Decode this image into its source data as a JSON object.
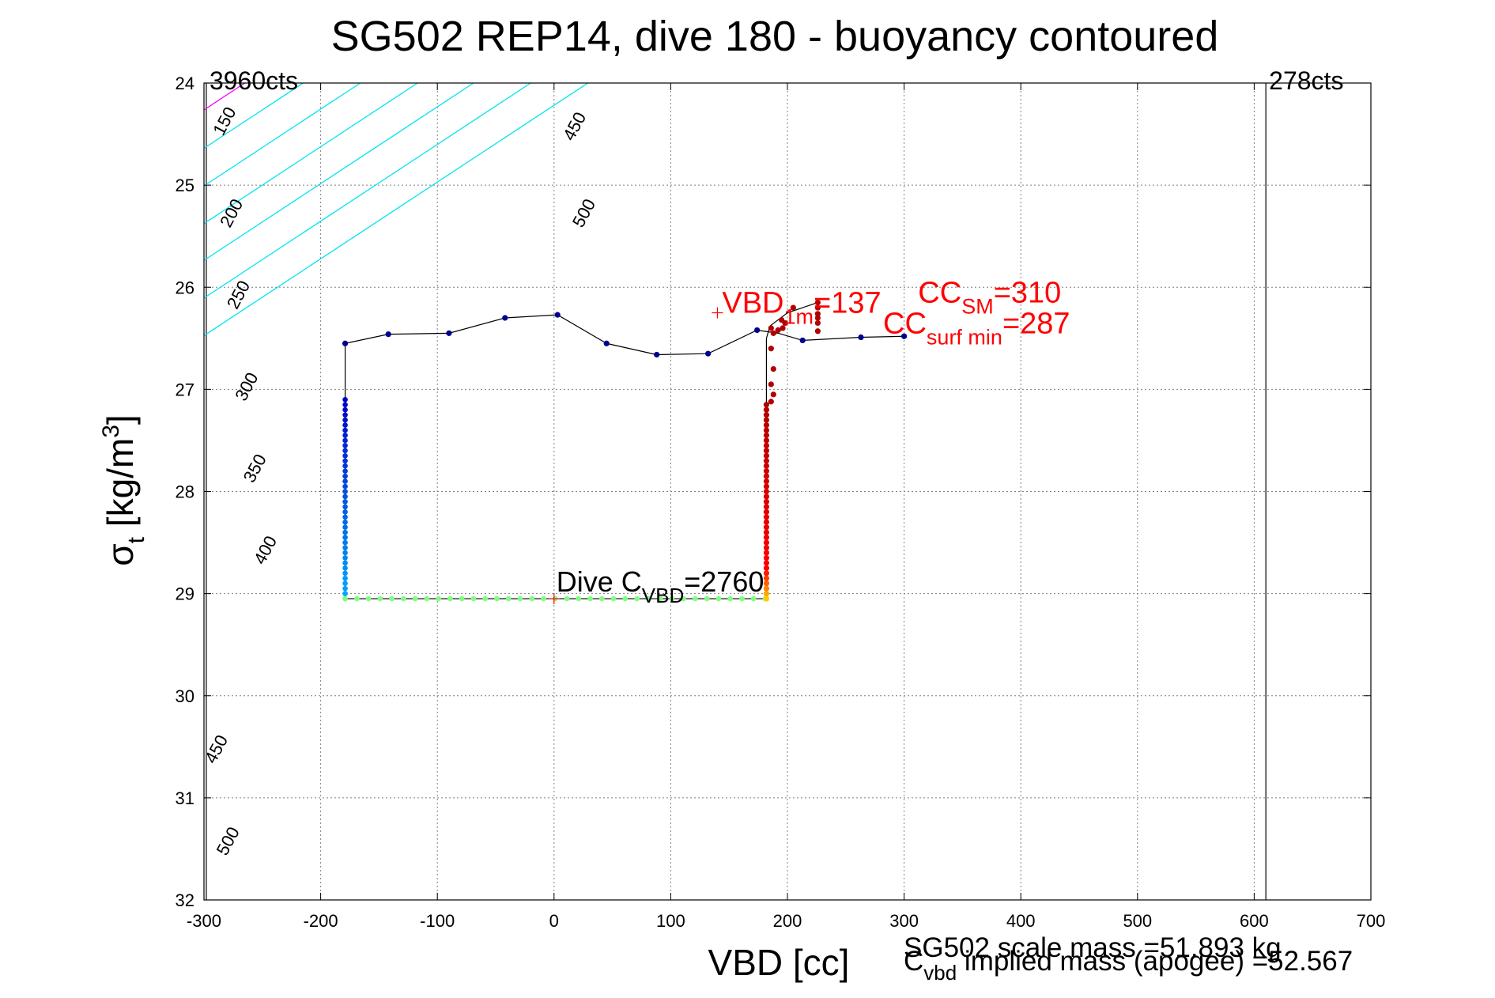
{
  "chart_data": {
    "type": "scatter",
    "title": "SG502 REP14, dive 180 - buoyancy contoured",
    "xlabel": "VBD [cc]",
    "ylabel": {
      "main": "σ",
      "sub": "t",
      "rest": " [kg/m",
      "sup": "3",
      "close": "]"
    },
    "xlim": [
      -300,
      700
    ],
    "ylim": [
      32,
      24
    ],
    "y_reversed": true,
    "grid": true,
    "xticks": [
      -300,
      -200,
      -100,
      0,
      100,
      200,
      300,
      400,
      500,
      600,
      700
    ],
    "yticks": [
      24,
      25,
      26,
      27,
      28,
      29,
      30,
      31,
      32
    ],
    "colors": {
      "axes": "#000000",
      "grid": "#7f7f7f",
      "contour": "#00e5ee",
      "contour_highlight": "#ff00ff",
      "annotation_red": "#ff0000",
      "track": "#000000",
      "surface_points": "#00008f"
    },
    "contours": [
      {
        "label": "150",
        "x_at_y24": -313
      },
      {
        "label": "200",
        "x_at_y24": -265
      },
      {
        "label": "250",
        "x_at_y24": -215
      },
      {
        "label": "300",
        "x_at_y24": -166
      },
      {
        "label": "350",
        "x_at_y24": -117
      },
      {
        "label": "400",
        "x_at_y24": -69
      },
      {
        "label": "450",
        "x_at_y24": -20
      },
      {
        "label": "500",
        "x_at_y24": 29
      }
    ],
    "contour_label_marks": [
      {
        "label": "150",
        "x": -278,
        "y": 24.4
      },
      {
        "label": "200",
        "x": -272,
        "y": 25.3
      },
      {
        "label": "250",
        "x": -266,
        "y": 26.1
      },
      {
        "label": "300",
        "x": -259,
        "y": 27.0
      },
      {
        "label": "350",
        "x": -252,
        "y": 27.8
      },
      {
        "label": "400",
        "x": -243,
        "y": 28.6
      },
      {
        "label": "450",
        "x": 22,
        "y": 24.45
      },
      {
        "label": "500",
        "x": 30,
        "y": 25.3
      },
      {
        "label": "450",
        "x": -285,
        "y": 30.55
      },
      {
        "label": "500",
        "x": -275,
        "y": 31.45
      }
    ],
    "count_lines": [
      {
        "label": "3960cts",
        "x": -298
      },
      {
        "label": "278cts",
        "x": 610
      }
    ],
    "track": [
      [
        300,
        26.48
      ],
      [
        263,
        26.49
      ],
      [
        213,
        26.52
      ],
      [
        192,
        26.45
      ],
      [
        174,
        26.42
      ],
      [
        132,
        26.65
      ],
      [
        88,
        26.66
      ],
      [
        45,
        26.55
      ],
      [
        3,
        26.27
      ],
      [
        -42,
        26.3
      ],
      [
        -90,
        26.45
      ],
      [
        -142,
        26.46
      ],
      [
        -179,
        26.55
      ],
      [
        -179,
        29.05
      ],
      [
        182,
        29.05
      ],
      [
        182,
        26.5
      ],
      [
        185,
        26.38
      ],
      [
        200,
        26.25
      ],
      [
        226,
        26.15
      ]
    ],
    "surface_points": [
      [
        300,
        26.48
      ],
      [
        263,
        26.49
      ],
      [
        213,
        26.52
      ],
      [
        174,
        26.42
      ],
      [
        132,
        26.65
      ],
      [
        88,
        26.66
      ],
      [
        45,
        26.55
      ],
      [
        3,
        26.27
      ],
      [
        -42,
        26.3
      ],
      [
        -90,
        26.45
      ],
      [
        -142,
        26.46
      ],
      [
        -179,
        26.55
      ]
    ],
    "descent": {
      "x": -179,
      "y_from": 27.1,
      "y_to": 29.05,
      "color_top": "#0000c8",
      "color_bottom": "#00aaff"
    },
    "bottom_leg": {
      "x_from": -179,
      "x_to": 182,
      "y": 29.05,
      "color": "#7fff7f"
    },
    "ascent": {
      "x": 182,
      "y_from": 29.05,
      "y_to": 27.15,
      "color_top": "#b00000",
      "color_mid": "#ff0000",
      "color_bottom": "#ffcc00"
    },
    "upper_points": [
      [
        186,
        26.4
      ],
      [
        188,
        26.45
      ],
      [
        186,
        26.6
      ],
      [
        188,
        26.8
      ],
      [
        186,
        26.95
      ],
      [
        188,
        27.05
      ],
      [
        186,
        27.12
      ],
      [
        195,
        26.32
      ],
      [
        196,
        26.4
      ],
      [
        205,
        26.2
      ],
      [
        226,
        26.15
      ],
      [
        226,
        26.2
      ],
      [
        226,
        26.26
      ],
      [
        226,
        26.3
      ],
      [
        226,
        26.35
      ],
      [
        226,
        26.43
      ],
      [
        198,
        26.35
      ],
      [
        192,
        26.42
      ]
    ],
    "markers": [
      {
        "label": "VBD 1m marker",
        "x": 140,
        "y": 26.25,
        "color": "#ff0000"
      },
      {
        "label": "Dive CVBD marker",
        "x": 0,
        "y": 29.05,
        "color": "#ff0000"
      }
    ],
    "annotations": {
      "vbd1m": {
        "pre": "VBD",
        "sub": "1m",
        "post": "=137",
        "x": 144,
        "y": 26.25
      },
      "ccsm": {
        "pre": "CC",
        "sub": "SM",
        "post": "=310",
        "x": 312,
        "y": 26.15
      },
      "ccsurf": {
        "pre": "CC",
        "sub": "surf min",
        "post": "=287",
        "x": 282,
        "y": 26.45
      },
      "divec": {
        "pre": "Dive C",
        "sub": "VBD",
        "post": "=2760",
        "x": 2,
        "y": 28.98
      }
    },
    "footer": {
      "scale_mass": "SG502 scale mass =51.893 kg",
      "implied_pre": "C",
      "implied_sub": "vbd",
      "implied_post": " implied mass (apogee) =52.567"
    }
  }
}
